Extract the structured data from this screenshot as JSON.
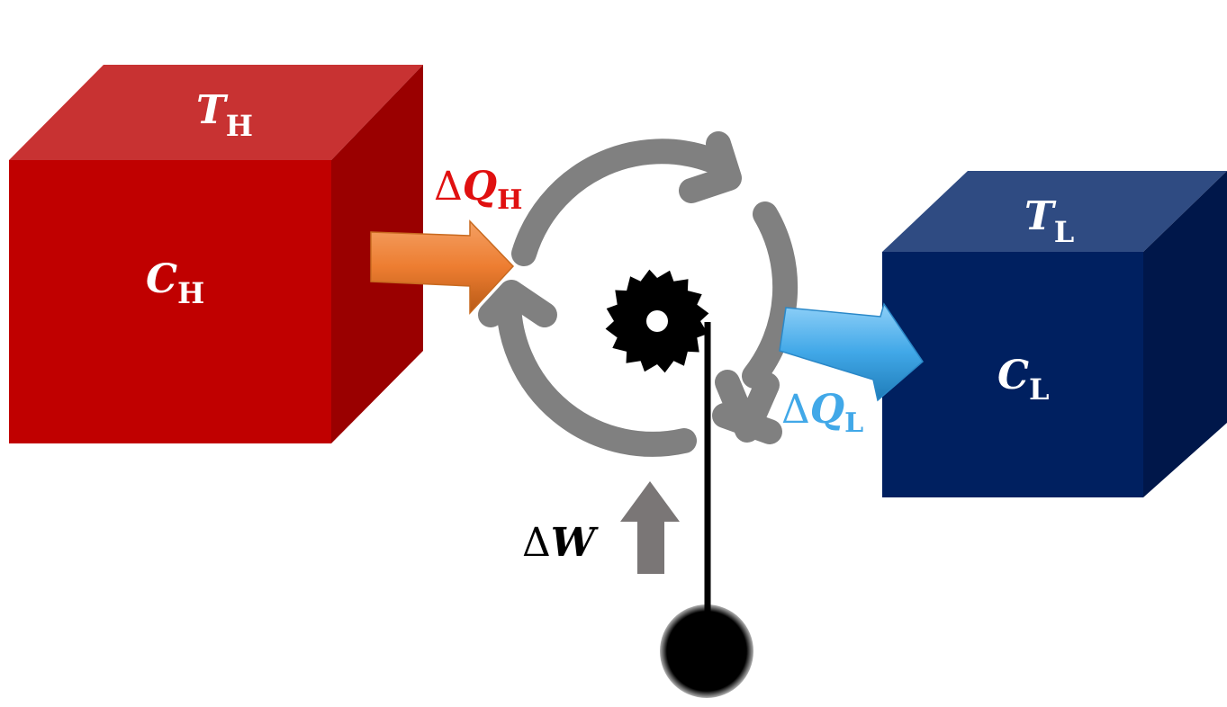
{
  "hot_reservoir": {
    "temperature": {
      "symbol": "T",
      "subscript": "H"
    },
    "capacity": {
      "symbol": "C",
      "subscript": "H"
    },
    "color": "#c00000"
  },
  "cold_reservoir": {
    "temperature": {
      "symbol": "T",
      "subscript": "L"
    },
    "capacity": {
      "symbol": "C",
      "subscript": "L"
    },
    "color": "#002060"
  },
  "heat_in": {
    "prefix": "Δ",
    "symbol": "Q",
    "subscript": "H",
    "color": "#e01010",
    "arrow_color": "#ed7d31"
  },
  "heat_out": {
    "prefix": "Δ",
    "symbol": "Q",
    "subscript": "L",
    "color": "#41a8e8",
    "arrow_color": "#41a8e8"
  },
  "work": {
    "prefix": "Δ",
    "symbol": "W",
    "color": "#000000",
    "arrow_color": "#7a7676"
  },
  "cycle": {
    "arrow_color": "#808080"
  }
}
